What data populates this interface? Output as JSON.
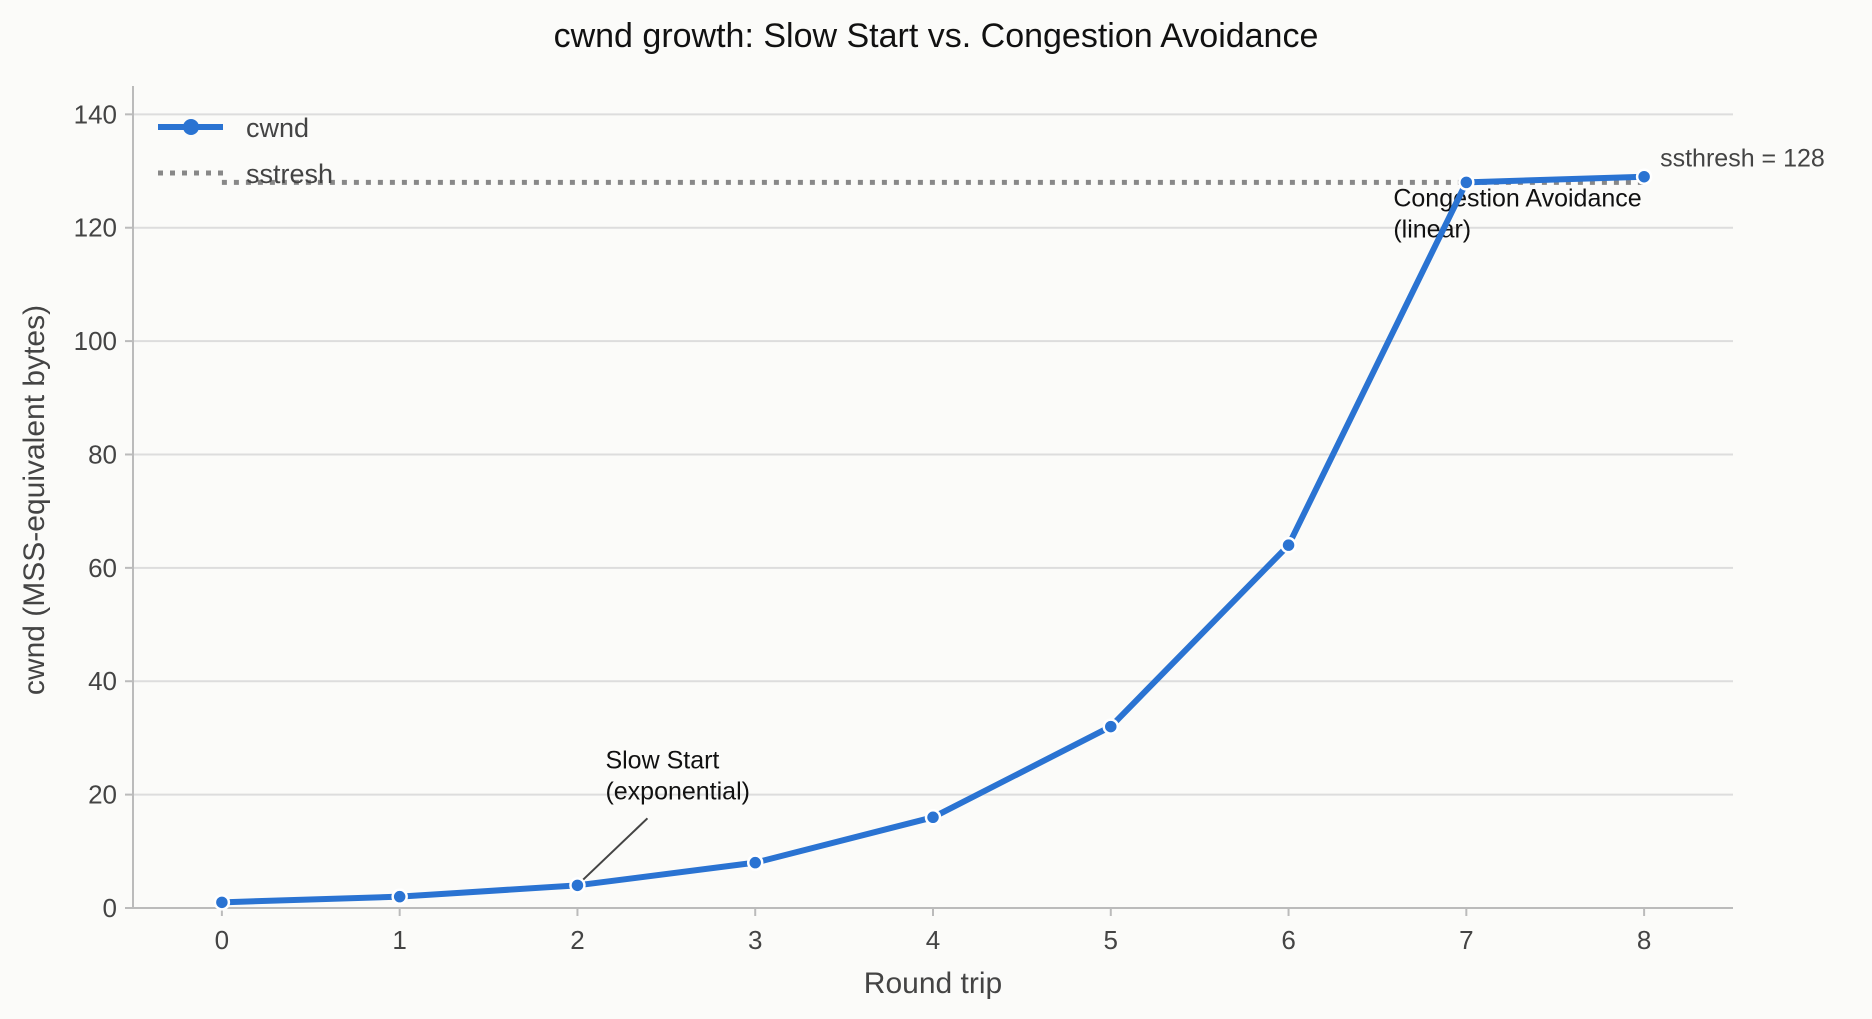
{
  "chart_data": {
    "type": "line",
    "title": "cwnd growth: Slow Start vs. Congestion Avoidance",
    "xlabel": "Round trip",
    "ylabel": "cwnd (MSS-equivalent bytes)",
    "x": [
      0,
      1,
      2,
      3,
      4,
      5,
      6,
      7,
      8
    ],
    "xlim": [
      -0.5,
      8.5
    ],
    "ylim": [
      0,
      145
    ],
    "x_ticks": [
      0,
      1,
      2,
      3,
      4,
      5,
      6,
      7,
      8
    ],
    "y_ticks": [
      0,
      20,
      40,
      60,
      80,
      100,
      120,
      140
    ],
    "grid": "horizontal",
    "legend_position": "top-left",
    "series": [
      {
        "name": "cwnd",
        "values": [
          1,
          2,
          4,
          8,
          16,
          32,
          64,
          128,
          129
        ],
        "color": "#2a73d2",
        "style": "solid",
        "markers": true
      }
    ],
    "reference_lines": [
      {
        "name": "sstresh",
        "y": 128,
        "color": "#888888",
        "style": "dotted",
        "label": "ssthresh = 128"
      }
    ],
    "annotations": [
      {
        "lines": [
          "Slow Start",
          "(exponential)"
        ],
        "point": [
          2,
          4
        ],
        "arrow": true
      },
      {
        "lines": [
          "Congestion Avoidance",
          "(linear)"
        ],
        "point": [
          7,
          128
        ],
        "arrow": false
      }
    ]
  }
}
